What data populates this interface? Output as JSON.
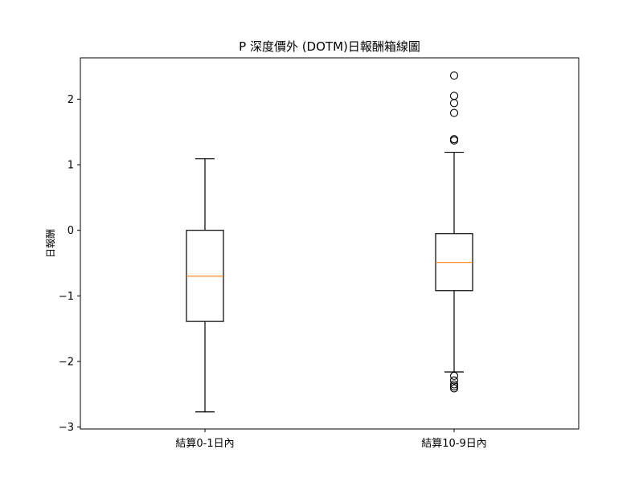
{
  "chart_data": {
    "type": "box",
    "title": "P 深度價外 (DOTM)日報酬箱線圖",
    "xlabel": "",
    "ylabel": "日報酬",
    "ylim": [
      -3.03,
      2.63
    ],
    "yticks": [
      -3,
      -2,
      -1,
      0,
      1,
      2
    ],
    "ytick_labels": [
      "−3",
      "−2",
      "−1",
      "0",
      "1",
      "2"
    ],
    "categories": [
      "結算0-1日內",
      "結算10-9日內"
    ],
    "boxes": [
      {
        "name": "結算0-1日內",
        "whisker_low": -2.77,
        "q1": -1.39,
        "median": -0.7,
        "q3": 0.0,
        "whisker_high": 1.09,
        "outliers": []
      },
      {
        "name": "結算10-9日內",
        "whisker_low": -2.16,
        "q1": -0.92,
        "median": -0.49,
        "q3": -0.05,
        "whisker_high": 1.19,
        "outliers": [
          2.36,
          2.05,
          1.94,
          1.79,
          1.39,
          1.37,
          -2.22,
          -2.29,
          -2.35,
          -2.38,
          -2.41
        ]
      }
    ],
    "colors": {
      "box": "#000000",
      "median": "#ff7f0e",
      "background": "#ffffff"
    }
  }
}
